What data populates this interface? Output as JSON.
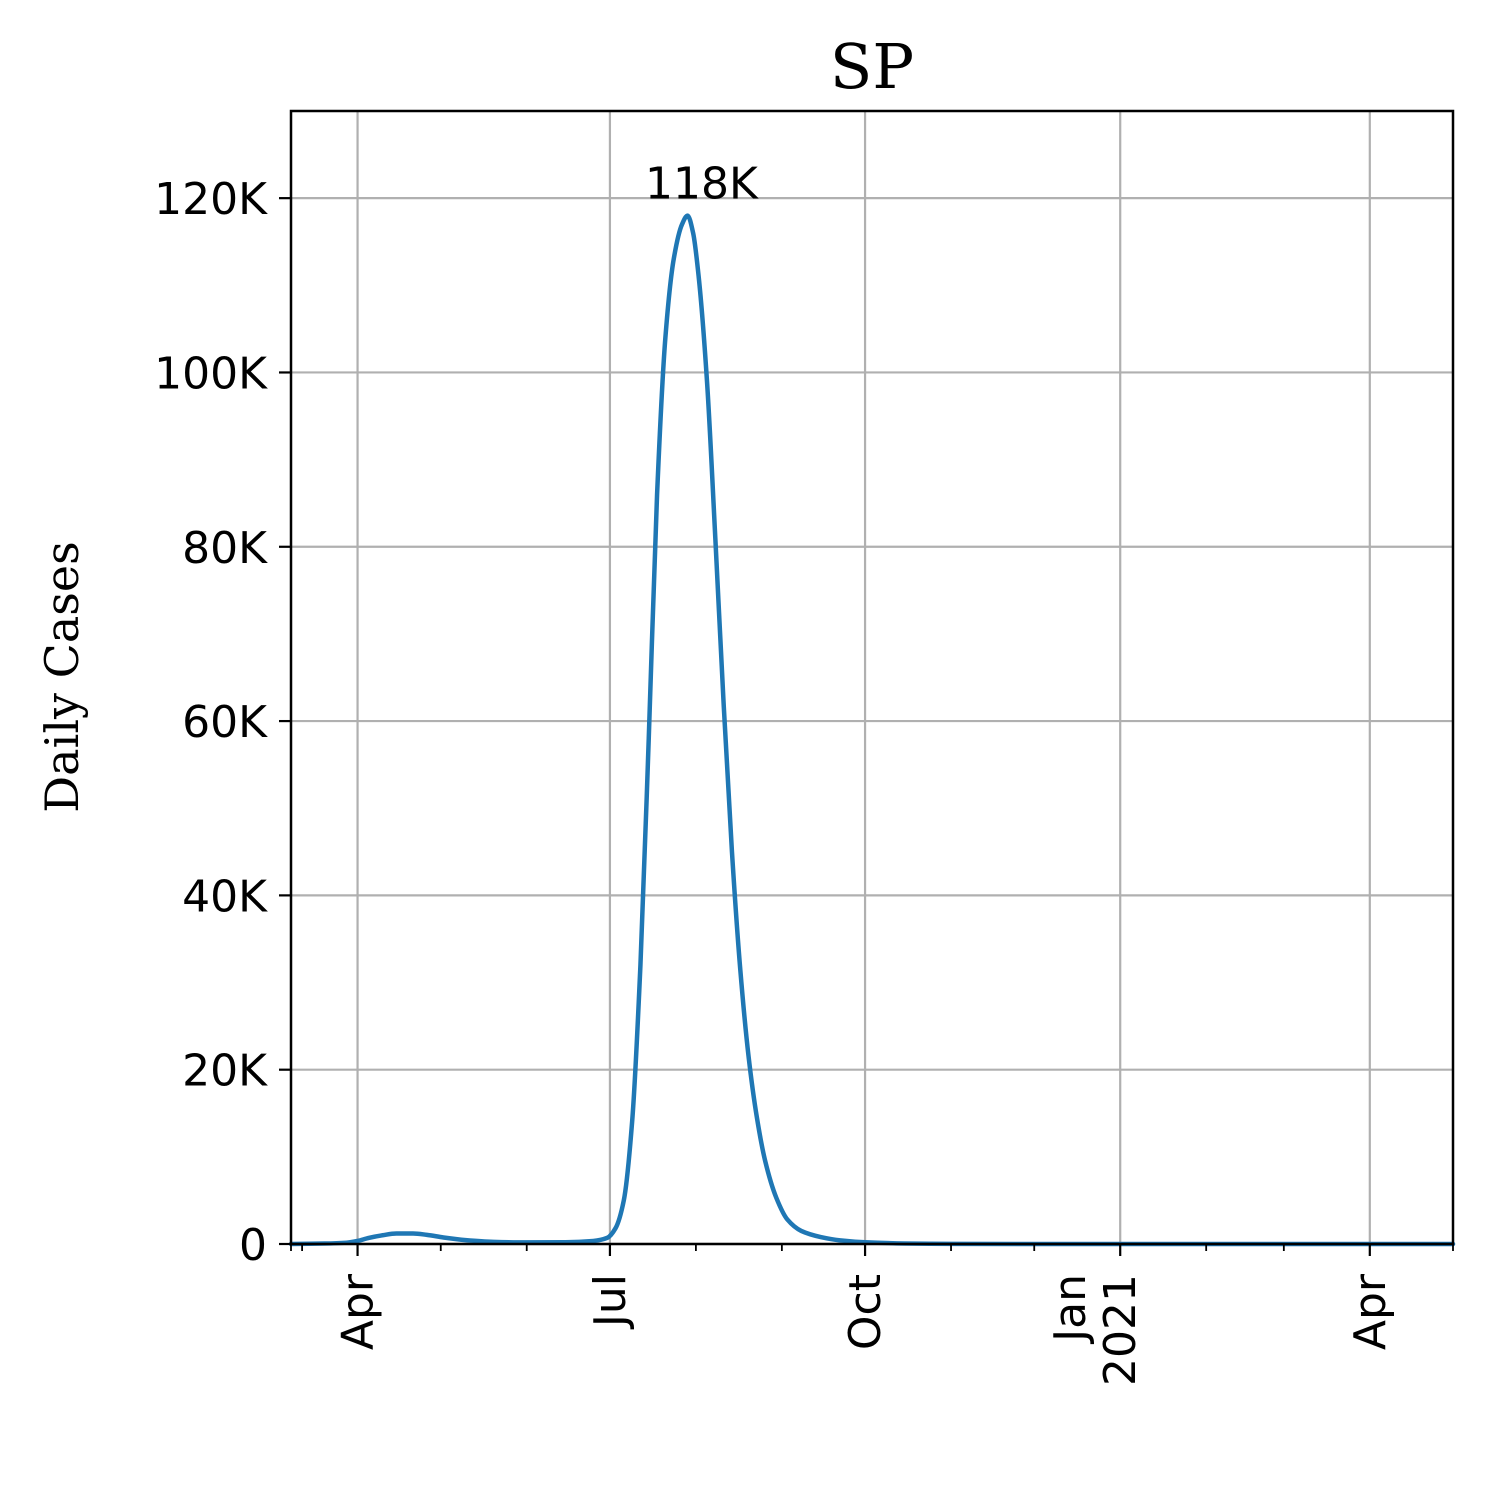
{
  "chart_data": {
    "type": "line",
    "title": "SP",
    "xlabel": "",
    "ylabel": "Daily Cases",
    "grid": true,
    "legend": "none",
    "x_range": [
      "2020-03-08",
      "2021-05-01"
    ],
    "ylim": [
      0,
      130000
    ],
    "y_ticks": [
      {
        "value": 0,
        "label": "0"
      },
      {
        "value": 20000,
        "label": "20K"
      },
      {
        "value": 40000,
        "label": "40K"
      },
      {
        "value": 60000,
        "label": "60K"
      },
      {
        "value": 80000,
        "label": "80K"
      },
      {
        "value": 100000,
        "label": "100K"
      },
      {
        "value": 120000,
        "label": "120K"
      }
    ],
    "x_ticks": [
      {
        "date": "2020-04-01",
        "label": "Apr"
      },
      {
        "date": "2020-07-01",
        "label": "Jul"
      },
      {
        "date": "2020-10-01",
        "label": "Oct"
      },
      {
        "date": "2021-01-01",
        "label": "Jan\n2021"
      },
      {
        "date": "2021-04-01",
        "label": "Apr"
      }
    ],
    "x_minor_ticks": [
      "2020-03-08",
      "2020-03-12",
      "2020-05-01",
      "2020-06-01",
      "2020-08-01",
      "2020-09-01",
      "2020-11-01",
      "2020-12-01",
      "2021-02-01",
      "2021-03-01",
      "2021-05-01"
    ],
    "annotation": {
      "text": "118K",
      "date": "2020-08-03",
      "value": 118000
    },
    "series": [
      {
        "color": "#1f77b4",
        "points": [
          [
            "2020-03-08",
            0
          ],
          [
            "2020-03-20",
            50
          ],
          [
            "2020-03-28",
            150
          ],
          [
            "2020-04-01",
            350
          ],
          [
            "2020-04-05",
            700
          ],
          [
            "2020-04-10",
            1000
          ],
          [
            "2020-04-15",
            1200
          ],
          [
            "2020-04-21",
            1200
          ],
          [
            "2020-04-26",
            1050
          ],
          [
            "2020-05-02",
            750
          ],
          [
            "2020-05-10",
            450
          ],
          [
            "2020-05-20",
            250
          ],
          [
            "2020-06-01",
            180
          ],
          [
            "2020-06-15",
            200
          ],
          [
            "2020-06-25",
            350
          ],
          [
            "2020-06-30",
            700
          ],
          [
            "2020-07-03",
            1800
          ],
          [
            "2020-07-06",
            5000
          ],
          [
            "2020-07-09",
            14000
          ],
          [
            "2020-07-12",
            32000
          ],
          [
            "2020-07-15",
            58000
          ],
          [
            "2020-07-18",
            86000
          ],
          [
            "2020-07-21",
            104000
          ],
          [
            "2020-07-24",
            113000
          ],
          [
            "2020-07-27",
            117000
          ],
          [
            "2020-07-29",
            118000
          ],
          [
            "2020-07-31",
            116000
          ],
          [
            "2020-08-02",
            111000
          ],
          [
            "2020-08-05",
            99000
          ],
          [
            "2020-08-08",
            81000
          ],
          [
            "2020-08-11",
            62000
          ],
          [
            "2020-08-14",
            45000
          ],
          [
            "2020-08-17",
            31500
          ],
          [
            "2020-08-20",
            21500
          ],
          [
            "2020-08-23",
            14500
          ],
          [
            "2020-08-26",
            9500
          ],
          [
            "2020-08-30",
            5300
          ],
          [
            "2020-09-03",
            2800
          ],
          [
            "2020-09-08",
            1500
          ],
          [
            "2020-09-15",
            800
          ],
          [
            "2020-09-22",
            420
          ],
          [
            "2020-10-01",
            200
          ],
          [
            "2020-10-15",
            60
          ],
          [
            "2020-11-01",
            10
          ],
          [
            "2021-01-01",
            0
          ],
          [
            "2021-05-01",
            0
          ]
        ]
      }
    ]
  }
}
